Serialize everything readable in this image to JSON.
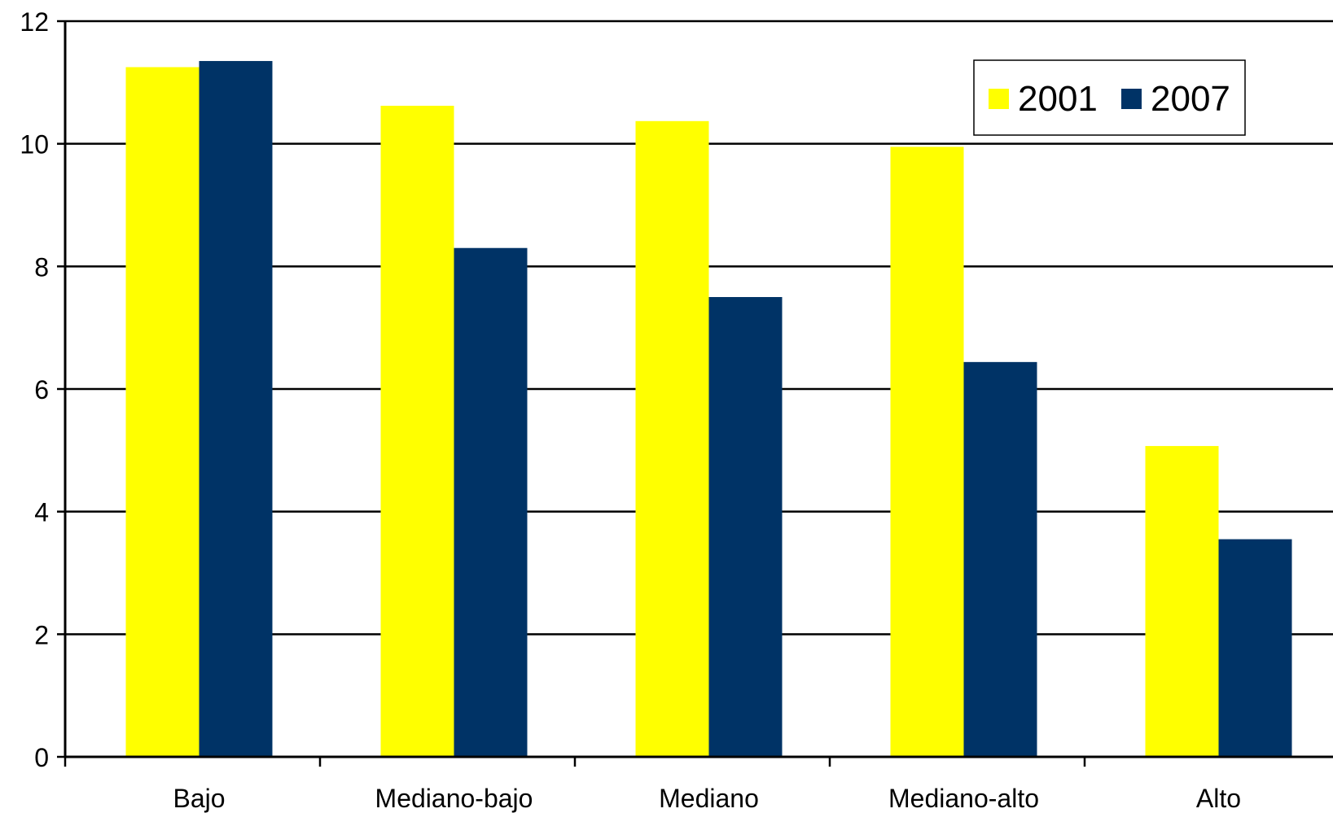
{
  "chart_data": {
    "type": "bar",
    "categories": [
      "Bajo",
      "Mediano-bajo",
      "Mediano",
      "Mediano-alto",
      "Alto"
    ],
    "series": [
      {
        "name": "2001",
        "color": "#ffff00",
        "values": [
          11.25,
          10.62,
          10.37,
          9.95,
          5.07
        ]
      },
      {
        "name": "2007",
        "color": "#003366",
        "values": [
          11.35,
          8.3,
          7.5,
          6.44,
          3.55
        ]
      }
    ],
    "title": "",
    "xlabel": "",
    "ylabel": "",
    "ylim": [
      0,
      12
    ],
    "yticks": [
      "0",
      "2",
      "4",
      "6",
      "8",
      "10",
      "12"
    ],
    "grid": true,
    "legend_position": "top-right"
  }
}
